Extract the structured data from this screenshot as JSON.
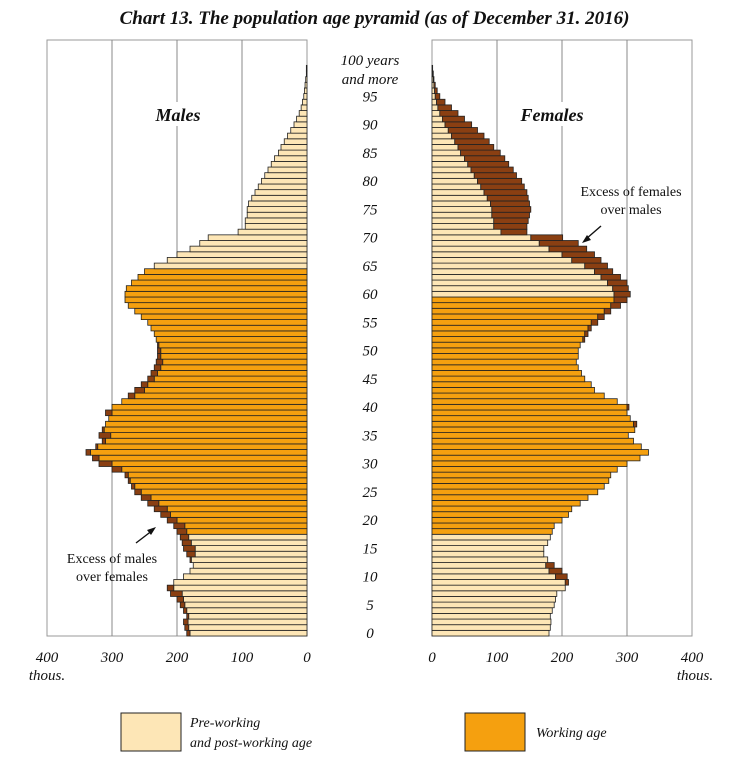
{
  "chart_data": {
    "type": "bar",
    "title": "Chart 13. The population age pyramid (as of December 31. 2016)",
    "panels": {
      "left": "Males",
      "right": "Females"
    },
    "unit_label": "thous.",
    "x_ticks": [
      400,
      300,
      200,
      100,
      0
    ],
    "x_ticks_right": [
      0,
      100,
      200,
      300,
      400
    ],
    "xlim": [
      0,
      400
    ],
    "age_labels": [
      "0",
      "5",
      "10",
      "15",
      "20",
      "25",
      "30",
      "35",
      "40",
      "45",
      "50",
      "55",
      "60",
      "65",
      "70",
      "75",
      "80",
      "85",
      "90",
      "95"
    ],
    "top_age_label": [
      "100 years",
      "and more"
    ],
    "ages": "0-100",
    "working_age": {
      "males": [
        18,
        64
      ],
      "females": [
        18,
        59
      ]
    },
    "males": [
      185,
      188,
      190,
      185,
      190,
      195,
      200,
      210,
      215,
      205,
      190,
      180,
      175,
      180,
      185,
      190,
      192,
      195,
      200,
      205,
      215,
      225,
      235,
      245,
      255,
      265,
      270,
      275,
      280,
      300,
      320,
      330,
      340,
      325,
      315,
      320,
      315,
      310,
      305,
      310,
      300,
      285,
      275,
      265,
      255,
      245,
      240,
      235,
      232,
      230,
      230,
      230,
      232,
      235,
      240,
      245,
      255,
      265,
      275,
      280,
      280,
      278,
      270,
      260,
      250,
      235,
      215,
      200,
      180,
      165,
      152,
      106,
      95,
      95,
      92,
      92,
      90,
      85,
      80,
      75,
      70,
      65,
      60,
      55,
      50,
      44,
      40,
      35,
      30,
      25,
      20,
      16,
      12,
      9,
      7,
      5,
      4,
      3,
      2,
      1,
      1
    ],
    "females": [
      180,
      182,
      183,
      182,
      185,
      188,
      190,
      192,
      205,
      210,
      208,
      200,
      188,
      178,
      172,
      172,
      178,
      182,
      185,
      188,
      200,
      210,
      215,
      228,
      240,
      255,
      265,
      272,
      275,
      285,
      300,
      320,
      333,
      322,
      310,
      302,
      312,
      315,
      305,
      300,
      303,
      285,
      265,
      250,
      245,
      235,
      230,
      225,
      222,
      225,
      225,
      228,
      235,
      240,
      245,
      255,
      265,
      275,
      290,
      300,
      305,
      302,
      300,
      290,
      278,
      270,
      260,
      250,
      238,
      225,
      201,
      146,
      146,
      148,
      150,
      152,
      150,
      148,
      146,
      142,
      138,
      130,
      125,
      118,
      112,
      105,
      95,
      88,
      80,
      70,
      61,
      50,
      40,
      30,
      20,
      12,
      8,
      5,
      3,
      2,
      1
    ],
    "annotations": {
      "males_excess": [
        "Excess of males",
        "over females"
      ],
      "females_excess": [
        "Excess of females",
        "over males"
      ]
    },
    "legend": [
      {
        "label": [
          "Pre-working",
          "and post-working age"
        ],
        "color": "#FDE6B6"
      },
      {
        "label": [
          "Working age"
        ],
        "color": "#F5A00F"
      }
    ],
    "colors": {
      "pale": "#FDE6B6",
      "working": "#F5A00F",
      "excess": "#8A3F12"
    }
  }
}
